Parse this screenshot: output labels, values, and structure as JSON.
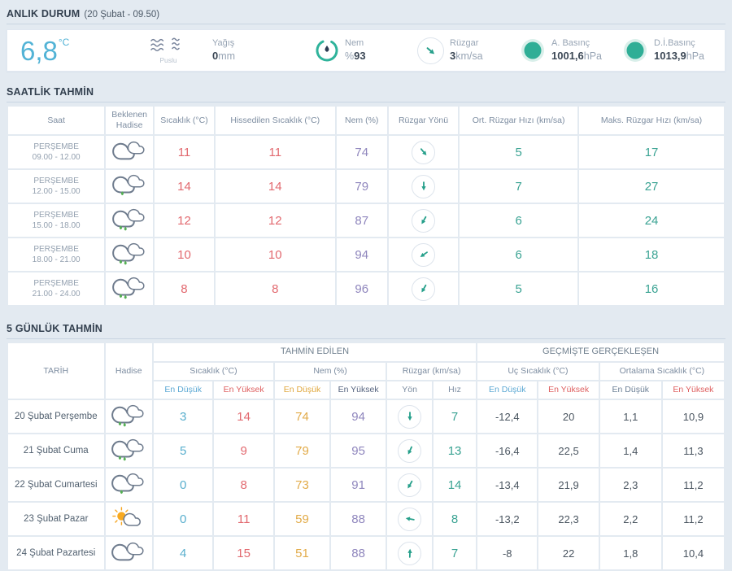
{
  "colors": {
    "accent_teal": "#2fae96",
    "temp_blue": "#52b3d6",
    "value_red": "#e2696f",
    "value_purple": "#8f86bd",
    "value_orange": "#e2ab49",
    "value_low_blue": "#58aecd",
    "page_bg": "#e3eaf1"
  },
  "current": {
    "section_title": "ANLIK DURUM",
    "section_subtitle": "(20 Şubat - 09.50)",
    "temperature": "6,8",
    "temperature_unit": "°C",
    "condition_icon": "haze",
    "condition_label": "Puslu",
    "precip_label": "Yağış",
    "precip_value": "0",
    "precip_unit": "mm",
    "humidity_label": "Nem",
    "humidity_prefix": "%",
    "humidity_value": "93",
    "wind_label": "Rüzgar",
    "wind_value": "3",
    "wind_unit": "km/sa",
    "wind_dir_deg": 130,
    "pressure_label": "A. Basınç",
    "pressure_value": "1001,6",
    "pressure_unit": "hPa",
    "sea_pressure_label": "D.İ.Basınç",
    "sea_pressure_value": "1013,9",
    "sea_pressure_unit": "hPa"
  },
  "hourly": {
    "section_title": "SAATLİK TAHMİN",
    "columns": {
      "time": "Saat",
      "event": "Beklenen Hadise",
      "temp": "Sıcaklık (°C)",
      "feels": "Hissedilen Sıcaklık (°C)",
      "humidity": "Nem (%)",
      "wind_dir": "Rüzgar Yönü",
      "wind_avg": "Ort. Rüzgar Hızı (km/sa)",
      "wind_max": "Maks. Rüzgar Hızı (km/sa)"
    },
    "rows": [
      {
        "day": "PERŞEMBE",
        "time": "09.00 - 12.00",
        "icon": "cloudy",
        "temp": "11",
        "feels": "11",
        "humidity": "74",
        "wind_dir_deg": 140,
        "wind_avg": "5",
        "wind_max": "17"
      },
      {
        "day": "PERŞEMBE",
        "time": "12.00 - 15.00",
        "icon": "light-rain",
        "temp": "14",
        "feels": "14",
        "humidity": "79",
        "wind_dir_deg": 180,
        "wind_avg": "7",
        "wind_max": "27"
      },
      {
        "day": "PERŞEMBE",
        "time": "15.00 - 18.00",
        "icon": "rain",
        "temp": "12",
        "feels": "12",
        "humidity": "87",
        "wind_dir_deg": 210,
        "wind_avg": "6",
        "wind_max": "24"
      },
      {
        "day": "PERŞEMBE",
        "time": "18.00 - 21.00",
        "icon": "rain",
        "temp": "10",
        "feels": "10",
        "humidity": "94",
        "wind_dir_deg": 235,
        "wind_avg": "6",
        "wind_max": "18"
      },
      {
        "day": "PERŞEMBE",
        "time": "21.00 - 24.00",
        "icon": "rain",
        "temp": "8",
        "feels": "8",
        "humidity": "96",
        "wind_dir_deg": 210,
        "wind_avg": "5",
        "wind_max": "16"
      }
    ]
  },
  "daily": {
    "section_title": "5 GÜNLÜK TAHMİN",
    "columns": {
      "date": "TARİH",
      "event": "Hadise",
      "group_forecast": "TAHMİN EDİLEN",
      "group_past": "GEÇMİŞTE GERÇEKLEŞEN",
      "temp": "Sıcaklık (°C)",
      "humidity": "Nem (%)",
      "wind": "Rüzgar (km/sa)",
      "extreme": "Uç Sıcaklık (°C)",
      "average": "Ortalama Sıcaklık (°C)",
      "lowest": "En Düşük",
      "highest": "En Yüksek",
      "dir": "Yön",
      "speed": "Hız"
    },
    "rows": [
      {
        "date": "20 Şubat Perşembe",
        "icon": "rain",
        "temp_min": "3",
        "temp_max": "14",
        "hum_min": "74",
        "hum_max": "94",
        "wind_dir_deg": 180,
        "wind_speed": "7",
        "ext_min": "-12,4",
        "ext_max": "20",
        "avg_min": "1,1",
        "avg_max": "10,9"
      },
      {
        "date": "21 Şubat Cuma",
        "icon": "rain",
        "temp_min": "5",
        "temp_max": "9",
        "hum_min": "79",
        "hum_max": "95",
        "wind_dir_deg": 205,
        "wind_speed": "13",
        "ext_min": "-16,4",
        "ext_max": "22,5",
        "avg_min": "1,4",
        "avg_max": "11,3"
      },
      {
        "date": "22 Şubat Cumartesi",
        "icon": "light-rain",
        "temp_min": "0",
        "temp_max": "8",
        "hum_min": "73",
        "hum_max": "91",
        "wind_dir_deg": 210,
        "wind_speed": "14",
        "ext_min": "-13,4",
        "ext_max": "21,9",
        "avg_min": "2,3",
        "avg_max": "11,2"
      },
      {
        "date": "23 Şubat Pazar",
        "icon": "partly-sunny",
        "temp_min": "0",
        "temp_max": "11",
        "hum_min": "59",
        "hum_max": "88",
        "wind_dir_deg": 280,
        "wind_speed": "8",
        "ext_min": "-13,2",
        "ext_max": "22,3",
        "avg_min": "2,2",
        "avg_max": "11,2"
      },
      {
        "date": "24 Şubat Pazartesi",
        "icon": "cloudy",
        "temp_min": "4",
        "temp_max": "15",
        "hum_min": "51",
        "hum_max": "88",
        "wind_dir_deg": 2,
        "wind_speed": "7",
        "ext_min": "-8",
        "ext_max": "22",
        "avg_min": "1,8",
        "avg_max": "10,4"
      }
    ]
  }
}
